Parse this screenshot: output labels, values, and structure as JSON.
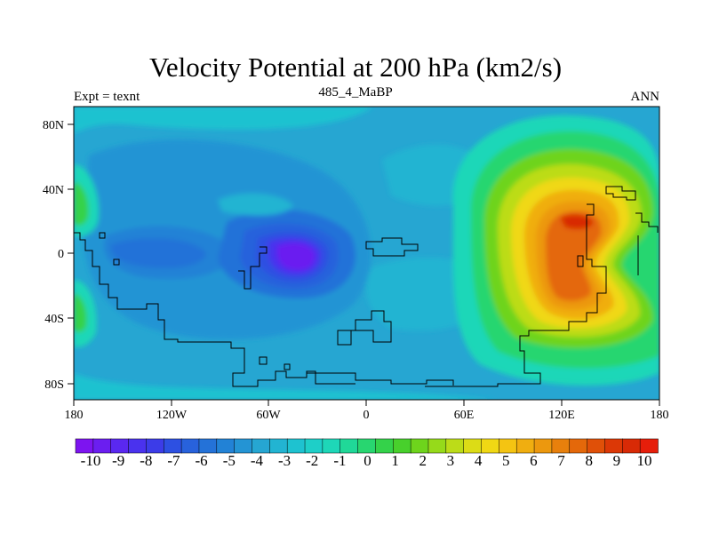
{
  "chart_data": {
    "type": "contour-map",
    "title": "Velocity Potential at 200 hPa (km2/s)",
    "left_string": "Expt = texnt",
    "center_string": "485_4_MaBP",
    "right_string": "ANN",
    "x_ticks": [
      "180",
      "120W",
      "60W",
      "0",
      "60E",
      "120E",
      "180"
    ],
    "y_ticks": [
      "80N",
      "40N",
      "0",
      "40S",
      "80S"
    ],
    "colorbar": {
      "labels": [
        "-10",
        "-9",
        "-8",
        "-7",
        "-6",
        "-5",
        "-4",
        "-3",
        "-2",
        "-1",
        "0",
        "1",
        "2",
        "3",
        "4",
        "5",
        "6",
        "7",
        "8",
        "9",
        "10"
      ],
      "colors": [
        "#7d14f0",
        "#6b1ef0",
        "#5a28f0",
        "#4a32ee",
        "#3c3ce8",
        "#2d50e2",
        "#2862dc",
        "#2472d8",
        "#2282d6",
        "#2494d4",
        "#26a6d2",
        "#22b4d2",
        "#1ec2d0",
        "#1ecfc8",
        "#1ed7b8",
        "#20d898",
        "#28d670",
        "#34d24a",
        "#48d02c",
        "#6ed41c",
        "#96da1a",
        "#bcdc18",
        "#dcdc16",
        "#f0d814",
        "#f4c412",
        "#f0ae10",
        "#ec980e",
        "#e8800c",
        "#e4680a",
        "#e05008",
        "#dc3806",
        "#d82a06",
        "#e61e0a"
      ]
    },
    "fields": [
      {
        "name": "background",
        "value": -1
      },
      {
        "name": "east-asia-high",
        "lon": 135,
        "lat": 5,
        "peak": 9
      },
      {
        "name": "atlantic-low",
        "lon": -35,
        "lat": 0,
        "peak": -10
      },
      {
        "name": "pacific-low",
        "lon": -145,
        "lat": 0,
        "peak": -5
      },
      {
        "name": "west-edge-high",
        "lon": -178,
        "lat": 30,
        "peak": 3
      },
      {
        "name": "west-edge-high-south",
        "lon": -178,
        "lat": -30,
        "peak": 3
      }
    ]
  }
}
